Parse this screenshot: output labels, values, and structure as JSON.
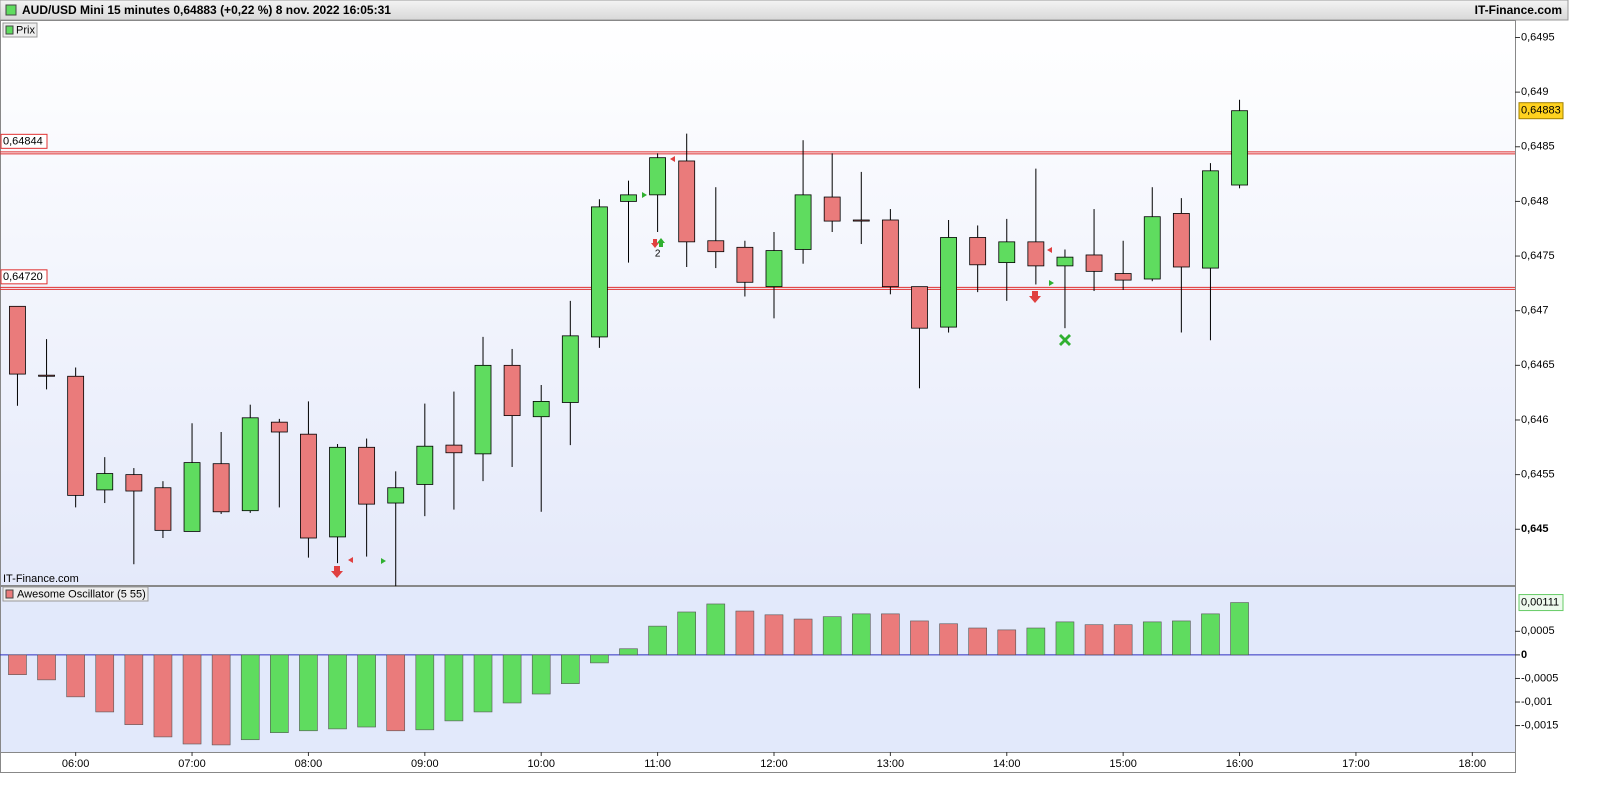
{
  "header": {
    "title": "AUD/USD Mini 15 minutes 0,64883 (+0,22 %) 8 nov. 2022 16:05:31",
    "source": "IT-Finance.com"
  },
  "chart_data": [
    {
      "type": "candlestick",
      "legend_label": "Prix",
      "watermark": "IT-Finance.com",
      "up_color": "#5fdc5f",
      "down_color": "#ea7b7b",
      "x": [
        "05:30",
        "05:45",
        "06:00",
        "06:15",
        "06:30",
        "06:45",
        "07:00",
        "07:15",
        "07:30",
        "07:45",
        "08:00",
        "08:15",
        "08:30",
        "08:45",
        "09:00",
        "09:15",
        "09:30",
        "09:45",
        "10:00",
        "10:15",
        "10:30",
        "10:45",
        "11:00",
        "11:15",
        "11:30",
        "11:45",
        "12:00",
        "12:15",
        "12:30",
        "12:45",
        "13:00",
        "13:15",
        "13:30",
        "13:45",
        "14:00",
        "14:15",
        "14:30",
        "14:45",
        "15:00",
        "15:15",
        "15:30",
        "15:45",
        "16:00"
      ],
      "open": [
        0.64704,
        0.64641,
        0.6464,
        0.64536,
        0.6455,
        0.64538,
        0.64498,
        0.6456,
        0.64517,
        0.64598,
        0.64587,
        0.64493,
        0.64575,
        0.64524,
        0.64541,
        0.64577,
        0.64569,
        0.6465,
        0.64603,
        0.64616,
        0.64676,
        0.648,
        0.64806,
        0.64837,
        0.64764,
        0.64758,
        0.64722,
        0.64756,
        0.64804,
        0.64783,
        0.64783,
        0.64722,
        0.64685,
        0.64767,
        0.64744,
        0.64763,
        0.64741,
        0.64751,
        0.64734,
        0.64729,
        0.64789,
        0.64739,
        0.64815
      ],
      "high": [
        0.64704,
        0.64674,
        0.64648,
        0.64566,
        0.64556,
        0.64544,
        0.64597,
        0.64589,
        0.64614,
        0.64601,
        0.64617,
        0.64578,
        0.64583,
        0.64553,
        0.64615,
        0.64626,
        0.64676,
        0.64665,
        0.64632,
        0.64709,
        0.64802,
        0.64819,
        0.64844,
        0.64862,
        0.64813,
        0.64764,
        0.64772,
        0.64856,
        0.64844,
        0.64827,
        0.64793,
        0.64722,
        0.64783,
        0.64778,
        0.64784,
        0.6483,
        0.64756,
        0.64793,
        0.64764,
        0.64813,
        0.64803,
        0.64835,
        0.64893
      ],
      "low": [
        0.64613,
        0.64628,
        0.6452,
        0.64524,
        0.64468,
        0.64492,
        0.64498,
        0.64514,
        0.64515,
        0.6452,
        0.64474,
        0.64469,
        0.64475,
        0.64448,
        0.64512,
        0.64518,
        0.64544,
        0.64557,
        0.64516,
        0.64577,
        0.64666,
        0.64744,
        0.64772,
        0.6474,
        0.64739,
        0.64713,
        0.64693,
        0.64743,
        0.64772,
        0.64761,
        0.64715,
        0.64629,
        0.6468,
        0.64717,
        0.64709,
        0.64724,
        0.64684,
        0.64718,
        0.64719,
        0.64727,
        0.6468,
        0.64673,
        0.64812
      ],
      "close": [
        0.64642,
        0.6464,
        0.64531,
        0.64551,
        0.64535,
        0.64499,
        0.64561,
        0.64516,
        0.64602,
        0.64589,
        0.64492,
        0.64575,
        0.64523,
        0.64538,
        0.64576,
        0.6457,
        0.6465,
        0.64604,
        0.64617,
        0.64677,
        0.64795,
        0.64806,
        0.6484,
        0.64763,
        0.64754,
        0.64726,
        0.64755,
        0.64806,
        0.64782,
        0.64782,
        0.64722,
        0.64684,
        0.64767,
        0.64742,
        0.64763,
        0.64741,
        0.64749,
        0.64736,
        0.64728,
        0.64786,
        0.6474,
        0.64828,
        0.64883
      ],
      "xlim": [
        "05:21",
        "18:22"
      ],
      "xticks": [
        "06:00",
        "07:00",
        "08:00",
        "09:00",
        "10:00",
        "11:00",
        "12:00",
        "13:00",
        "14:00",
        "15:00",
        "16:00",
        "17:00",
        "18:00"
      ],
      "ylim": [
        0.64449,
        0.64966
      ],
      "yticks": [
        {
          "value": 0.6495,
          "label": "0,6495"
        },
        {
          "value": 0.649,
          "label": "0,649"
        },
        {
          "value": 0.6485,
          "label": "0,6485"
        },
        {
          "value": 0.648,
          "label": "0,648"
        },
        {
          "value": 0.6475,
          "label": "0,6475"
        },
        {
          "value": 0.647,
          "label": "0,647"
        },
        {
          "value": 0.6465,
          "label": "0,6465"
        },
        {
          "value": 0.646,
          "label": "0,646"
        },
        {
          "value": 0.6455,
          "label": "0,6455"
        },
        {
          "value": 0.645,
          "label": "0,645"
        }
      ],
      "hlines": [
        {
          "value": 0.64844,
          "label": "0,64844"
        },
        {
          "value": 0.6472,
          "label": "0,64720"
        }
      ],
      "last_price": {
        "value": 0.64883,
        "label": "0,64883"
      },
      "annotations": [
        {
          "x": "11:00",
          "text": "2"
        }
      ]
    },
    {
      "type": "oscillator",
      "legend_label": "Awesome Oscillator (5 55)",
      "up_color": "#5fdc5f",
      "down_color": "#ea7b7b",
      "values": [
        -0.00042,
        -0.00053,
        -0.00089,
        -0.00121,
        -0.00148,
        -0.00174,
        -0.00189,
        -0.00191,
        -0.0018,
        -0.00165,
        -0.00161,
        -0.00157,
        -0.00153,
        -0.00161,
        -0.00159,
        -0.0014,
        -0.00121,
        -0.00102,
        -0.00083,
        -0.00061,
        -0.00017,
        0.00013,
        0.00061,
        0.00091,
        0.00108,
        0.00093,
        0.00085,
        0.00076,
        0.00081,
        0.00087,
        0.00087,
        0.00072,
        0.00066,
        0.00057,
        0.00053,
        0.00057,
        0.0007,
        0.00064,
        0.00064,
        0.0007,
        0.00072,
        0.00087,
        0.00111
      ],
      "ylim": [
        -0.00206,
        0.00144
      ],
      "yticks": [
        {
          "value": 0.0005,
          "label": "0,0005"
        },
        0,
        {
          "value": -0.0005,
          "label": "-0,0005"
        },
        {
          "value": -0.001,
          "label": "-0,001"
        },
        {
          "value": -0.0015,
          "label": "-0,0015"
        }
      ],
      "last_value": {
        "value": 0.00111,
        "label": "0,00111"
      }
    }
  ]
}
